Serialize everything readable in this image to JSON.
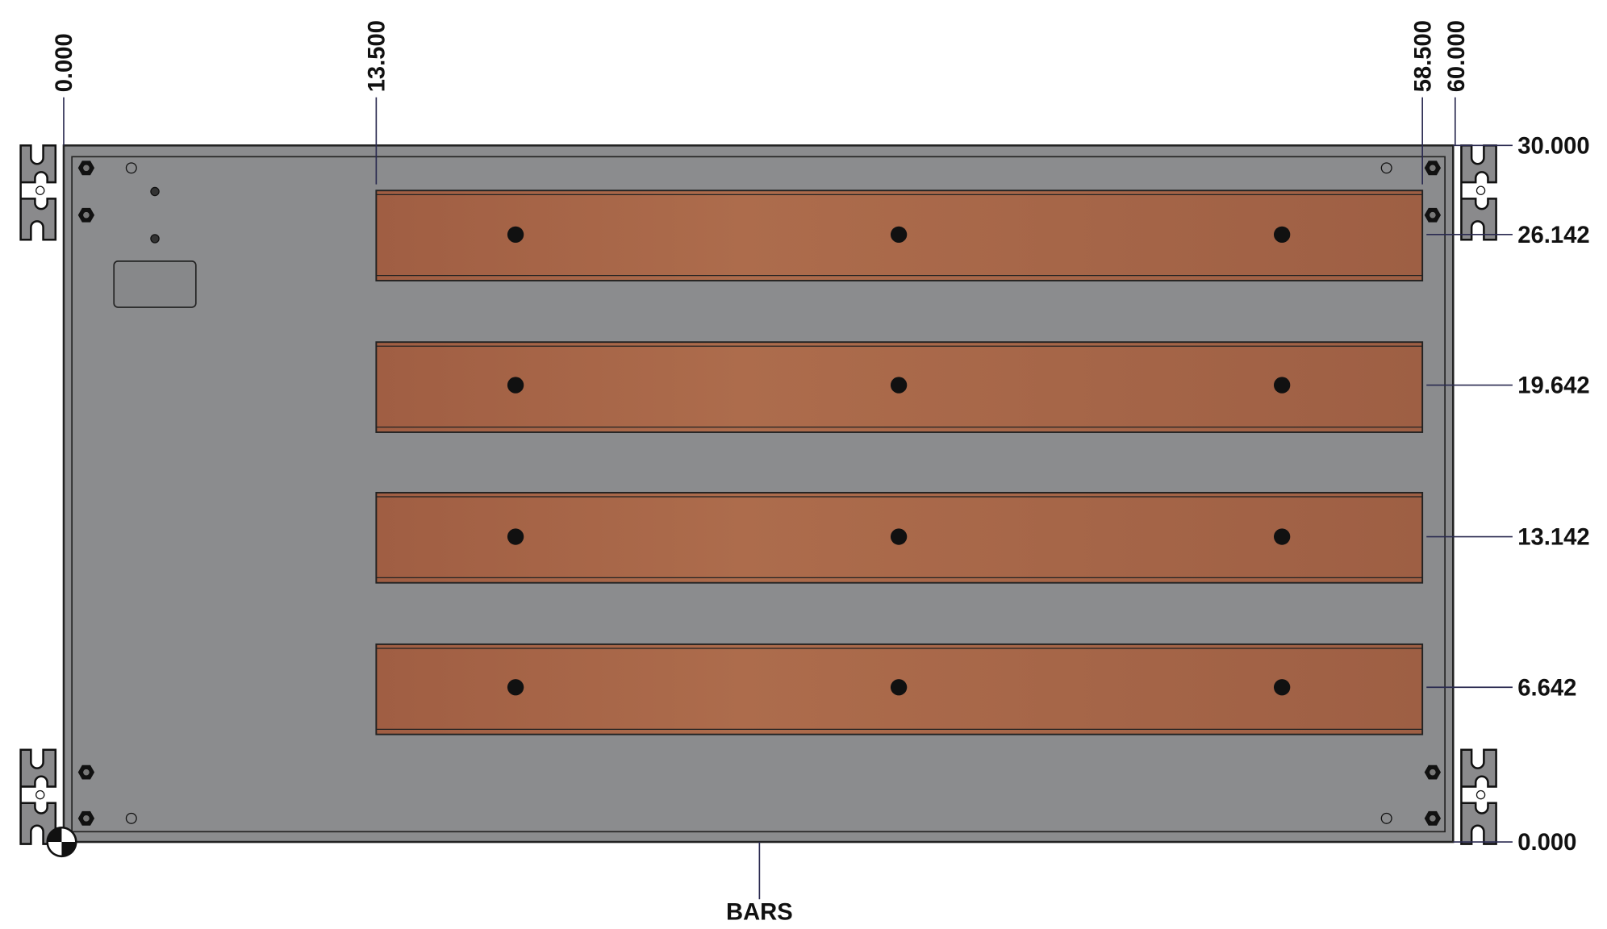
{
  "dimensions": {
    "horizontal": [
      "0.000",
      "13.500",
      "58.500",
      "60.000"
    ],
    "vertical": [
      "30.000",
      "26.142",
      "19.642",
      "13.142",
      "6.642",
      "0.000"
    ]
  },
  "label": "BARS"
}
